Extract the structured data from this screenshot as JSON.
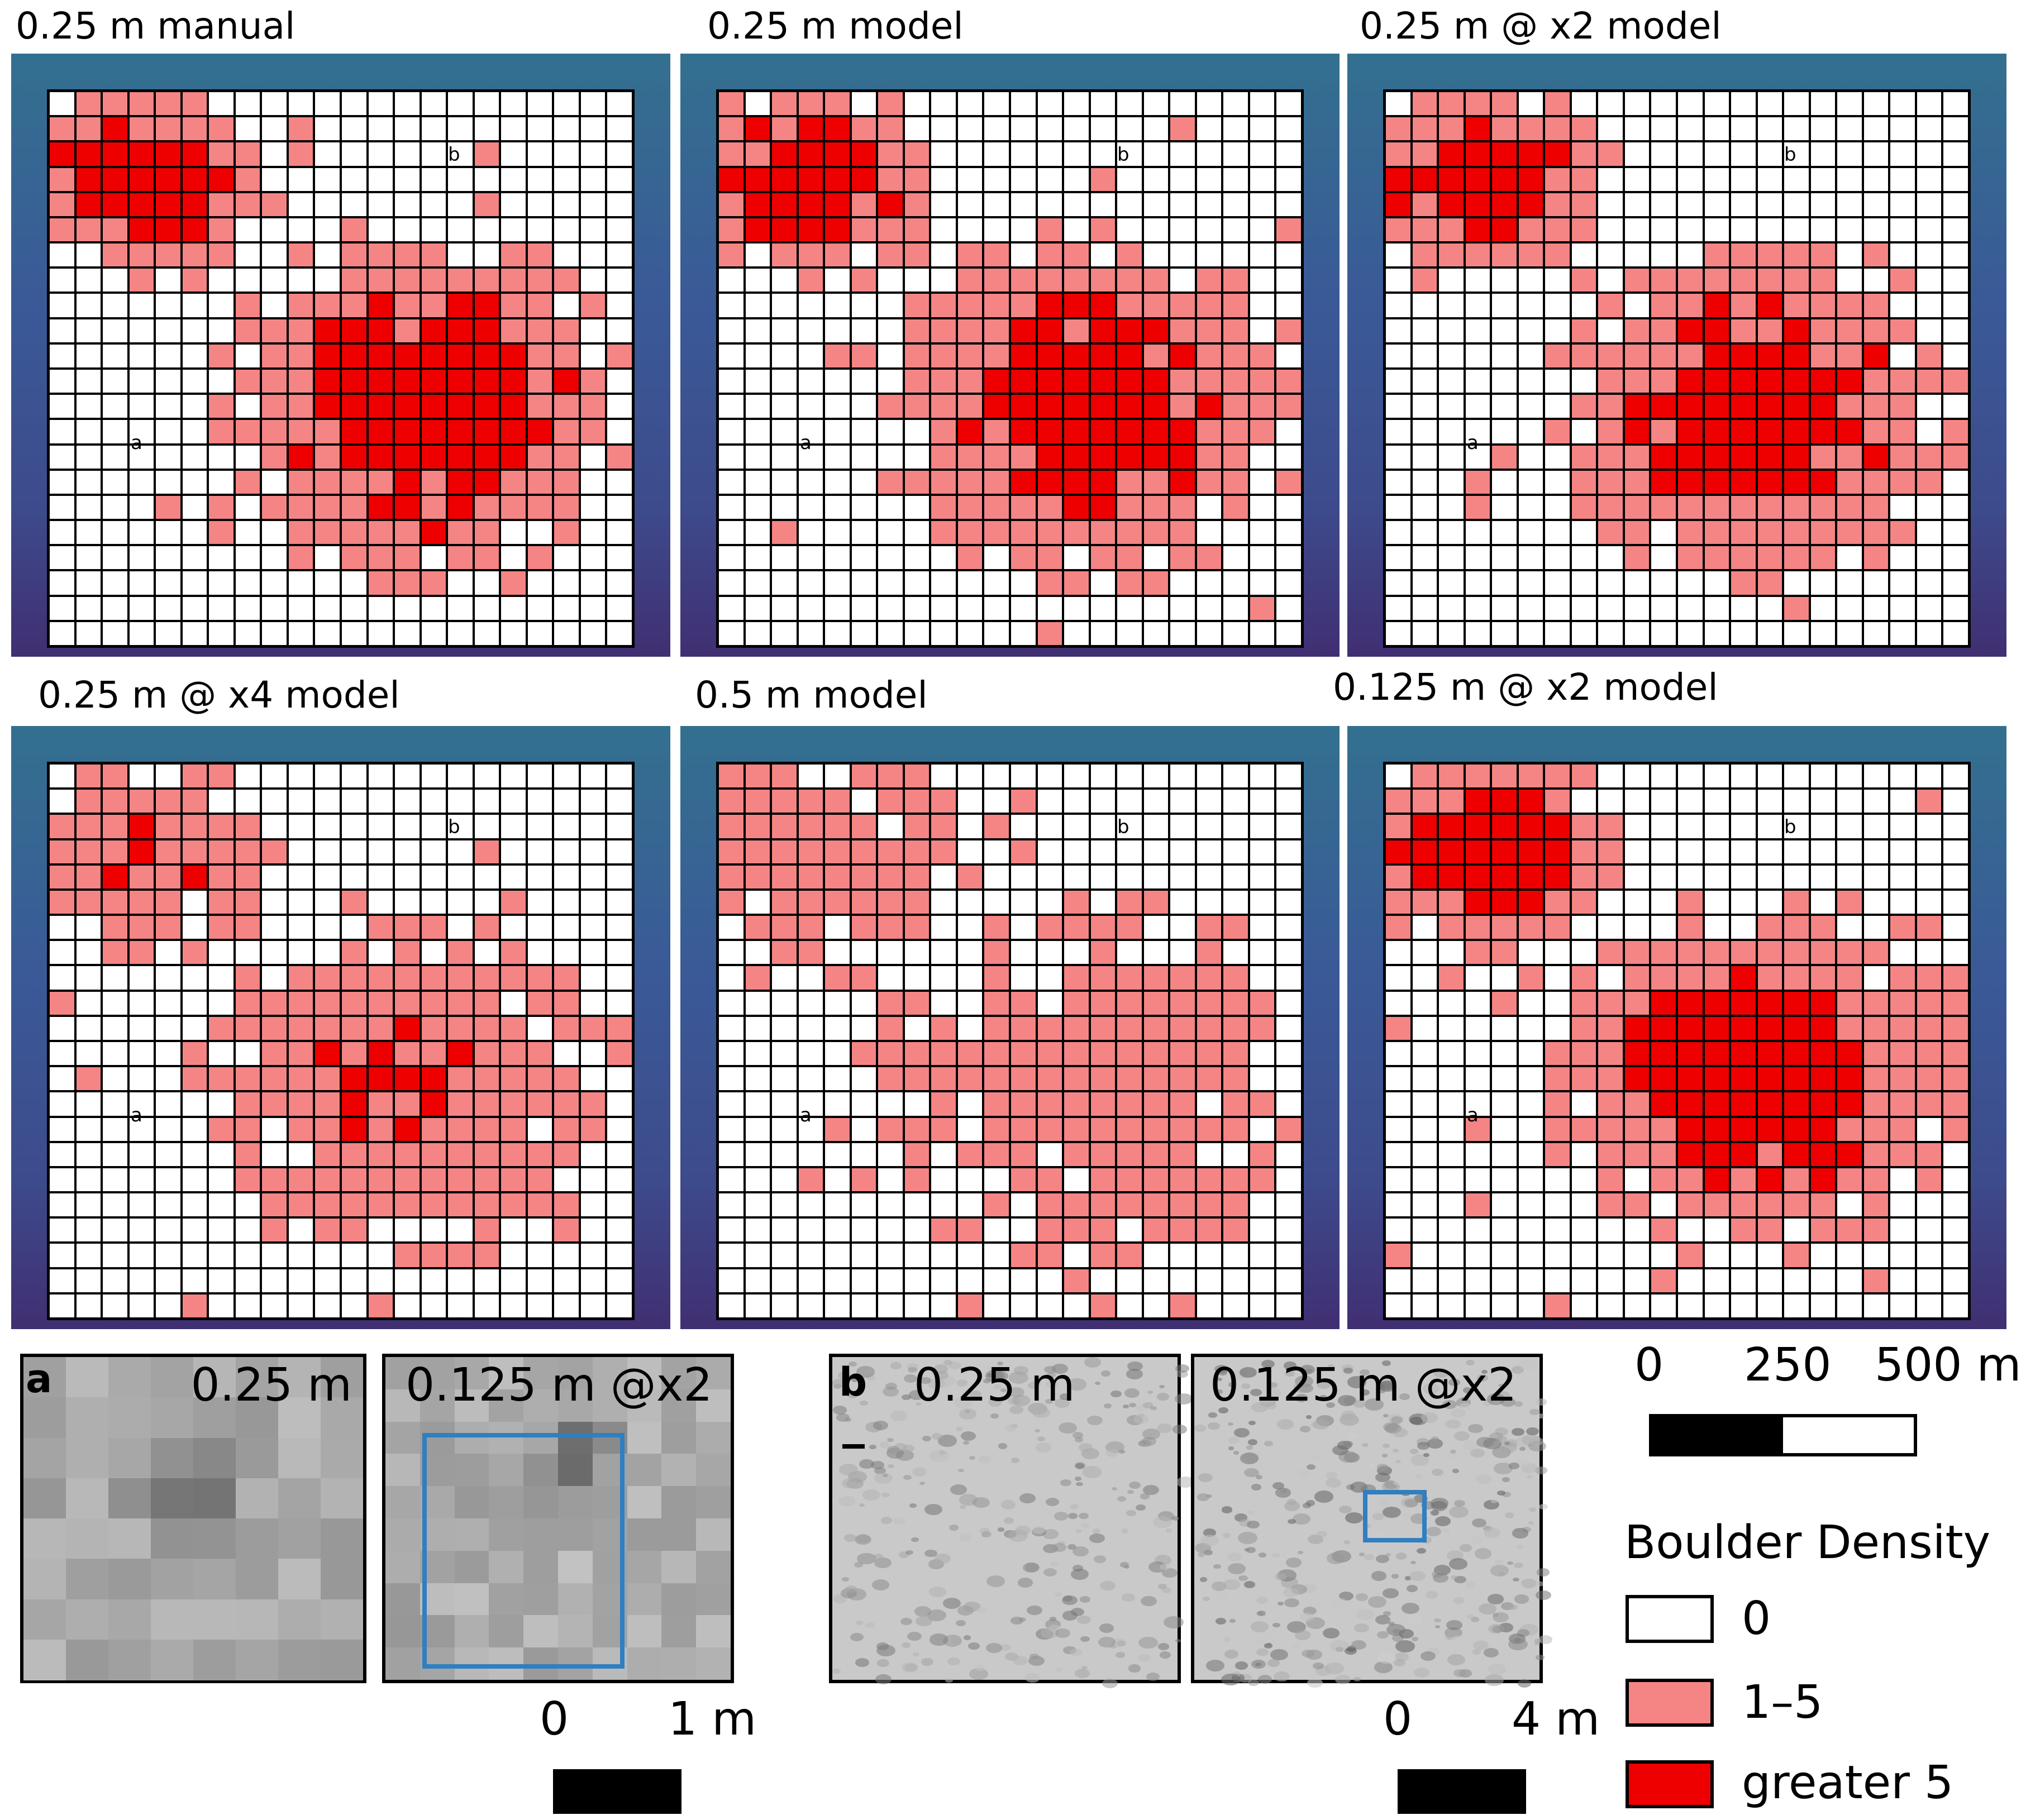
{
  "panels": [
    {
      "title": "0.25 m manual",
      "marker_a": "a",
      "marker_b": "b"
    },
    {
      "title": "0.25 m model",
      "marker_a": "a",
      "marker_b": "b"
    },
    {
      "title": "0.25 m @ x2 model",
      "marker_a": "a",
      "marker_b": "b"
    },
    {
      "title": "0.25 m @ x4 model",
      "marker_a": "a",
      "marker_b": "b"
    },
    {
      "title": "0.5 m model",
      "marker_a": "a",
      "marker_b": "b"
    },
    {
      "title": "0.125 m @ x2 model",
      "marker_a": "a",
      "marker_b": "b"
    }
  ],
  "insets": {
    "a": {
      "letter": "a",
      "left_label": "0.25 m",
      "right_label": "0.125 m @x2",
      "scale_start": "0",
      "scale_end": "1 m"
    },
    "b": {
      "letter": "b",
      "left_label": "0.25 m",
      "right_label": "0.125 m @x2",
      "scale_start": "0",
      "scale_end": "4 m"
    }
  },
  "map_scale": {
    "tick_0": "0",
    "tick_1": "250",
    "tick_2": "500 m"
  },
  "legend": {
    "title": "Boulder Density",
    "items": [
      {
        "label": "0",
        "color": "#ffffff"
      },
      {
        "label": "1–5",
        "color": "#f58585"
      },
      {
        "label": "greater 5",
        "color": "#ee0000"
      }
    ]
  },
  "colors": {
    "frame_top": "#33708f",
    "frame_bottom": "#402f72",
    "low_density": "#f58585",
    "high_density": "#ee0000",
    "highlight_box": "#2f7fc1"
  }
}
